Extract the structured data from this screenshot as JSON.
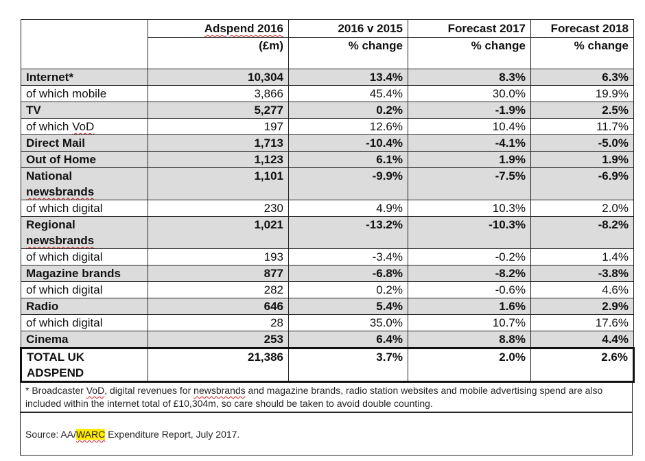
{
  "header": {
    "row1": [
      "Adspend 2016",
      "2016 v 2015",
      "Forecast 2017",
      "Forecast 2018"
    ],
    "row2": [
      "(£m)",
      "% change",
      "% change",
      "% change"
    ]
  },
  "rows": [
    {
      "label": "Internet*",
      "v": [
        "10,304",
        "13.4%",
        "8.3%",
        "6.3%"
      ]
    },
    {
      "label": "of which mobile",
      "v": [
        "3,866",
        "45.4%",
        "30.0%",
        "19.9%"
      ]
    },
    {
      "label": "TV",
      "v": [
        "5,277",
        "0.2%",
        "-1.9%",
        "2.5%"
      ]
    },
    {
      "label": "of which VoD",
      "v": [
        "197",
        "12.6%",
        "10.4%",
        "11.7%"
      ]
    },
    {
      "label": "Direct Mail",
      "v": [
        "1,713",
        "-10.4%",
        "-4.1%",
        "-5.0%"
      ]
    },
    {
      "label": "Out of Home",
      "v": [
        "1,123",
        "6.1%",
        "1.9%",
        "1.9%"
      ]
    },
    {
      "label_a": "National",
      "label_b": "newsbrands",
      "v": [
        "1,101",
        "-9.9%",
        "-7.5%",
        "-6.9%"
      ]
    },
    {
      "label": "of which digital",
      "v": [
        "230",
        "4.9%",
        "10.3%",
        "2.0%"
      ]
    },
    {
      "label_a": "Regional",
      "label_b": "newsbrands",
      "v": [
        "1,021",
        "-13.2%",
        "-10.3%",
        "-8.2%"
      ]
    },
    {
      "label": "of which digital",
      "v": [
        "193",
        "-3.4%",
        "-0.2%",
        "1.4%"
      ]
    },
    {
      "label": "Magazine brands",
      "v": [
        "877",
        "-6.8%",
        "-8.2%",
        "-3.8%"
      ]
    },
    {
      "label": "of which digital",
      "v": [
        "282",
        "0.2%",
        "-0.6%",
        "4.6%"
      ]
    },
    {
      "label": "Radio",
      "v": [
        "646",
        "5.4%",
        "1.6%",
        "2.9%"
      ]
    },
    {
      "label": "of which digital",
      "v": [
        "28",
        "35.0%",
        "10.7%",
        "17.6%"
      ]
    },
    {
      "label": "Cinema",
      "v": [
        "253",
        "6.4%",
        "8.8%",
        "4.4%"
      ]
    }
  ],
  "total": {
    "label_a": "TOTAL UK",
    "label_b": "ADSPEND",
    "v": [
      "21,386",
      "3.7%",
      "2.0%",
      "2.6%"
    ]
  },
  "note": {
    "a": "* Broadcaster ",
    "b": "VoD",
    "c": ", digital revenues for ",
    "d": "newsbrands",
    "e": " and magazine brands, radio station websites and mobile advertising spend are also included within the internet total of £10,304m, so care should be taken to avoid double counting."
  },
  "source": {
    "a": "Source: AA/",
    "b": "WARC",
    "c": " Expenditure Report, July 2017."
  }
}
